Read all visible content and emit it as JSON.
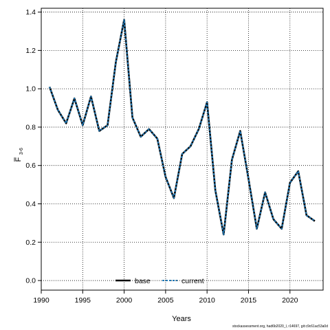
{
  "chart_data": {
    "type": "line",
    "xlabel": "Years",
    "ylabel_main": "F",
    "ylabel_sub": "3-6",
    "xlim": [
      1990,
      2024
    ],
    "ylim": [
      -0.05,
      1.42
    ],
    "x_ticks": [
      1990,
      1995,
      2000,
      2005,
      2010,
      2015,
      2020
    ],
    "y_ticks": [
      0.0,
      0.2,
      0.4,
      0.6,
      0.8,
      1.0,
      1.2,
      1.4
    ],
    "y_tick_labels": [
      "0.0",
      "0.2",
      "0.4",
      "0.6",
      "0.8",
      "1.0",
      "1.2",
      "1.4"
    ],
    "grid": true,
    "legend_position": "bottom-center",
    "x": [
      1991,
      1992,
      1993,
      1994,
      1995,
      1996,
      1997,
      1998,
      1999,
      2000,
      2001,
      2002,
      2003,
      2004,
      2005,
      2006,
      2007,
      2008,
      2009,
      2010,
      2011,
      2012,
      2013,
      2014,
      2015,
      2016,
      2017,
      2018,
      2019,
      2020,
      2021,
      2022,
      2023
    ],
    "series": [
      {
        "name": "base",
        "color": "#000000",
        "style": "solid",
        "values": [
          1.01,
          0.89,
          0.82,
          0.95,
          0.81,
          0.96,
          0.78,
          0.81,
          1.14,
          1.36,
          0.85,
          0.75,
          0.79,
          0.74,
          0.54,
          0.43,
          0.66,
          0.7,
          0.79,
          0.93,
          0.47,
          0.24,
          0.63,
          0.78,
          0.53,
          0.27,
          0.46,
          0.32,
          0.27,
          0.51,
          0.57,
          0.34,
          0.31
        ]
      },
      {
        "name": "current",
        "color": "#1f77b4",
        "style": "dashed",
        "values": [
          1.01,
          0.89,
          0.82,
          0.95,
          0.81,
          0.96,
          0.78,
          0.81,
          1.14,
          1.36,
          0.85,
          0.75,
          0.79,
          0.74,
          0.54,
          0.43,
          0.66,
          0.7,
          0.79,
          0.93,
          0.47,
          0.24,
          0.63,
          0.78,
          0.53,
          0.27,
          0.46,
          0.32,
          0.27,
          0.51,
          0.57,
          0.34,
          0.31
        ]
      }
    ]
  },
  "footer_text": "stockassessment.org, had6b2020_l, r14697, git:c9c61ac53a0d"
}
